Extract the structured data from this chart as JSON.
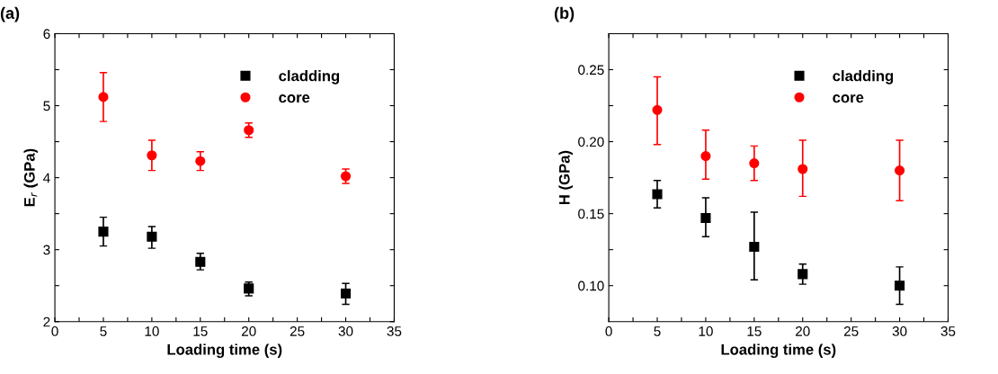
{
  "chart_data": [
    {
      "type": "scatter",
      "title": "(a)",
      "xlabel": "Loading time (s)",
      "ylabel": "E$_{r}$ (GPa)",
      "x": [
        5,
        10,
        15,
        20,
        30
      ],
      "xlim": [
        0,
        35
      ],
      "xticks": [
        0,
        {
          "value": 2.5,
          "label": null
        },
        5,
        {
          "value": 7.5,
          "label": null
        },
        10,
        {
          "value": 12.5,
          "label": null
        },
        15,
        {
          "value": 17.5,
          "label": null
        },
        20,
        {
          "value": 22.5,
          "label": null
        },
        25,
        {
          "value": 27.5,
          "label": null
        },
        30,
        {
          "value": 32.5,
          "label": null
        },
        35
      ],
      "ylim": [
        2,
        6
      ],
      "yticks": [
        2,
        {
          "value": 2.5,
          "label": null
        },
        3,
        {
          "value": 3.5,
          "label": null
        },
        4,
        {
          "value": 4.5,
          "label": null
        },
        5,
        {
          "value": 5.5,
          "label": null
        },
        6
      ],
      "grid": false,
      "legend": "top right",
      "series": [
        {
          "name": "cladding",
          "color": "#000000",
          "marker": "square",
          "values": [
            3.25,
            3.18,
            2.83,
            2.46,
            2.39
          ],
          "errors": [
            [
              3.05,
              3.45
            ],
            [
              3.02,
              3.32
            ],
            [
              2.72,
              2.95
            ],
            [
              2.36,
              2.55
            ],
            [
              2.24,
              2.53
            ]
          ]
        },
        {
          "name": "core",
          "color": "#ff0000",
          "marker": "circle",
          "values": [
            5.12,
            4.31,
            4.23,
            4.66,
            4.02
          ],
          "errors": [
            [
              4.78,
              5.46
            ],
            [
              4.1,
              4.52
            ],
            [
              4.1,
              4.36
            ],
            [
              4.56,
              4.76
            ],
            [
              3.92,
              4.12
            ]
          ]
        }
      ]
    },
    {
      "type": "scatter",
      "title": "(b)",
      "xlabel": "Loading time (s)",
      "ylabel": "H (GPa)",
      "x": [
        5,
        10,
        15,
        20,
        30
      ],
      "xlim": [
        0,
        35
      ],
      "xticks": [
        0,
        {
          "value": 2.5,
          "label": null
        },
        5,
        {
          "value": 7.5,
          "label": null
        },
        10,
        {
          "value": 12.5,
          "label": null
        },
        15,
        {
          "value": 17.5,
          "label": null
        },
        20,
        {
          "value": 22.5,
          "label": null
        },
        25,
        {
          "value": 27.5,
          "label": null
        },
        30,
        {
          "value": 32.5,
          "label": null
        },
        35
      ],
      "ylim": [
        0.075,
        0.275
      ],
      "yticks": [
        {
          "value": 0.1,
          "label": "0.10"
        },
        {
          "value": 0.125,
          "label": null
        },
        {
          "value": 0.15,
          "label": "0.15"
        },
        {
          "value": 0.175,
          "label": null
        },
        {
          "value": 0.2,
          "label": "0.20"
        },
        {
          "value": 0.225,
          "label": null
        },
        {
          "value": 0.25,
          "label": "0.25"
        }
      ],
      "grid": false,
      "legend": "top right",
      "series": [
        {
          "name": "cladding",
          "color": "#000000",
          "marker": "square",
          "values": [
            0.1635,
            0.147,
            0.127,
            0.108,
            0.1
          ],
          "errors": [
            [
              0.154,
              0.173
            ],
            [
              0.134,
              0.161
            ],
            [
              0.104,
              0.151
            ],
            [
              0.101,
              0.115
            ],
            [
              0.087,
              0.113
            ]
          ]
        },
        {
          "name": "core",
          "color": "#ff0000",
          "marker": "circle",
          "values": [
            0.222,
            0.19,
            0.185,
            0.181,
            0.18
          ],
          "errors": [
            [
              0.198,
              0.245
            ],
            [
              0.174,
              0.208
            ],
            [
              0.173,
              0.197
            ],
            [
              0.162,
              0.201
            ],
            [
              0.159,
              0.201
            ]
          ]
        }
      ]
    }
  ]
}
